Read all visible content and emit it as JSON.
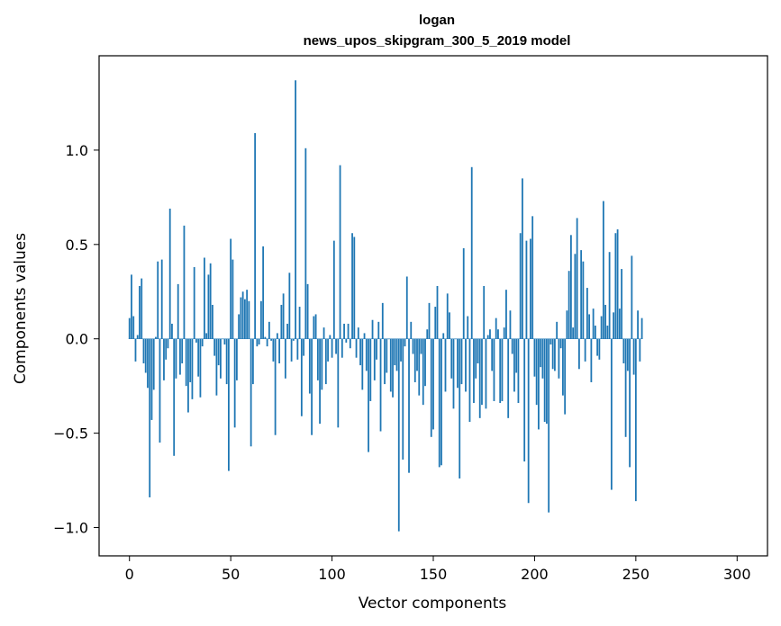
{
  "chart_data": {
    "type": "bar",
    "title": "logan",
    "subtitle": "news_upos_skipgram_300_5_2019 model",
    "xlabel": "Vector components",
    "ylabel": "Components values",
    "xlim": [
      -15,
      315
    ],
    "ylim": [
      -1.15,
      1.5
    ],
    "xticks": [
      0,
      50,
      100,
      150,
      200,
      250,
      300
    ],
    "xtick_labels": [
      "0",
      "50",
      "100",
      "150",
      "200",
      "250",
      "300"
    ],
    "yticks": [
      -1.0,
      -0.5,
      0.0,
      0.5,
      1.0
    ],
    "ytick_labels": [
      "−1.0",
      "−0.5",
      "0.0",
      "0.5",
      "1.0"
    ],
    "bar_color": "#1f77b4",
    "values": [
      0.11,
      0.34,
      0.12,
      -0.12,
      0.02,
      0.28,
      0.32,
      -0.13,
      -0.18,
      -0.26,
      -0.84,
      -0.43,
      -0.27,
      0.01,
      0.41,
      -0.55,
      0.42,
      -0.22,
      -0.11,
      -0.05,
      0.69,
      0.08,
      -0.62,
      -0.21,
      0.29,
      -0.19,
      -0.13,
      0.6,
      -0.25,
      -0.39,
      -0.23,
      -0.32,
      0.38,
      -0.02,
      -0.2,
      -0.31,
      -0.04,
      0.43,
      0.03,
      0.34,
      0.4,
      0.18,
      -0.09,
      -0.3,
      -0.14,
      -0.21,
      0.0,
      -0.03,
      -0.24,
      -0.7,
      0.53,
      0.42,
      -0.47,
      -0.22,
      0.13,
      0.22,
      0.25,
      0.21,
      0.26,
      0.2,
      -0.57,
      -0.24,
      1.09,
      -0.04,
      -0.03,
      0.2,
      0.49,
      0.01,
      -0.04,
      0.09,
      -0.01,
      -0.12,
      -0.51,
      0.03,
      -0.13,
      0.18,
      0.24,
      -0.21,
      0.08,
      0.35,
      -0.12,
      -0.01,
      1.37,
      -0.11,
      0.17,
      -0.41,
      -0.09,
      1.01,
      0.29,
      -0.29,
      -0.51,
      0.12,
      0.13,
      -0.22,
      -0.45,
      -0.27,
      0.06,
      -0.24,
      -0.12,
      0.02,
      -0.1,
      0.52,
      -0.08,
      -0.47,
      0.92,
      -0.1,
      0.08,
      -0.02,
      0.08,
      -0.05,
      0.56,
      0.54,
      -0.1,
      0.06,
      -0.14,
      -0.27,
      0.03,
      -0.17,
      -0.6,
      -0.33,
      0.1,
      -0.22,
      -0.11,
      0.09,
      -0.49,
      0.19,
      -0.24,
      -0.18,
      0.0,
      -0.28,
      -0.31,
      -0.14,
      -0.17,
      -1.02,
      -0.12,
      -0.64,
      -0.04,
      0.33,
      -0.71,
      0.09,
      -0.08,
      -0.23,
      -0.17,
      -0.3,
      -0.08,
      -0.35,
      -0.25,
      0.05,
      0.19,
      -0.52,
      -0.48,
      0.17,
      0.28,
      -0.68,
      -0.67,
      0.03,
      -0.28,
      0.24,
      0.14,
      -0.21,
      -0.37,
      0.0,
      -0.26,
      -0.74,
      -0.24,
      0.48,
      -0.28,
      0.12,
      -0.44,
      0.91,
      -0.34,
      -0.21,
      -0.13,
      -0.42,
      -0.35,
      0.28,
      -0.37,
      0.02,
      0.05,
      -0.17,
      -0.33,
      0.11,
      0.05,
      -0.34,
      -0.33,
      0.06,
      0.26,
      -0.42,
      0.15,
      -0.08,
      -0.28,
      -0.18,
      -0.34,
      0.56,
      0.85,
      -0.65,
      0.52,
      -0.87,
      0.53,
      0.65,
      -0.2,
      -0.35,
      -0.48,
      -0.15,
      -0.21,
      -0.44,
      -0.45,
      -0.92,
      -0.03,
      -0.16,
      -0.17,
      0.09,
      -0.21,
      -0.05,
      -0.3,
      -0.4,
      0.15,
      0.36,
      0.55,
      0.06,
      0.45,
      0.64,
      -0.16,
      0.47,
      0.41,
      -0.12,
      0.27,
      0.13,
      -0.23,
      0.16,
      0.07,
      -0.09,
      -0.11,
      0.12,
      0.73,
      0.18,
      0.07,
      0.46,
      -0.8,
      0.14,
      0.56,
      0.58,
      0.16,
      0.37,
      -0.13,
      -0.52,
      -0.17,
      -0.68,
      0.44,
      -0.19,
      -0.86,
      0.15,
      -0.12,
      0.11
    ]
  }
}
